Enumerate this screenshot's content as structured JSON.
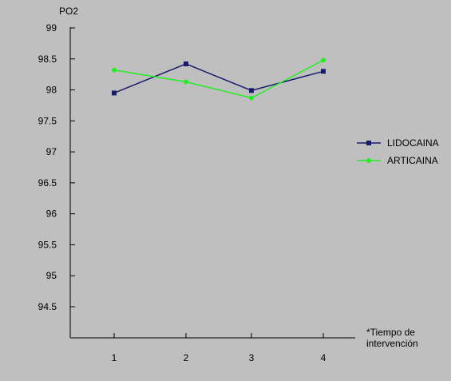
{
  "colors": {
    "background": "#BFBFBF",
    "axis": "#000000",
    "text": "#000000",
    "lidocaina": "#1B1B6B",
    "articaina": "#22EE22"
  },
  "chart_data": {
    "type": "line",
    "title": "",
    "xlabel": "*Tiempo de intervención",
    "ylabel": "PO2",
    "categories": [
      "1",
      "2",
      "3",
      "4"
    ],
    "yticks": [
      "94.5",
      "95",
      "95.5",
      "96",
      "96.5",
      "97",
      "97.5",
      "98",
      "98.5",
      "99"
    ],
    "ylim": [
      94.0,
      99.5
    ],
    "grid": false,
    "legend_position": "right",
    "series": [
      {
        "name": "LIDOCAINA",
        "marker": "square",
        "color": "#1B1B6B",
        "values": [
          97.95,
          98.42,
          97.99,
          98.3
        ]
      },
      {
        "name": "ARTICAINA",
        "marker": "circle",
        "color": "#22EE22",
        "values": [
          98.32,
          98.13,
          97.87,
          98.48
        ]
      }
    ]
  }
}
